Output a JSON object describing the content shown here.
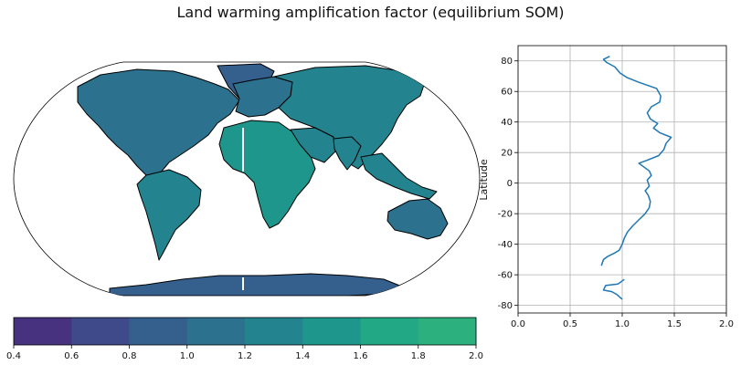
{
  "figure": {
    "title": "Land warming amplification factor (equilibrium SOM)"
  },
  "chart_data": [
    {
      "type": "heatmap",
      "projection": "robinson",
      "field": "land warming amplification factor (land only, ocean blank)",
      "colorbar": {
        "orientation": "horizontal",
        "ticks": [
          "0.4",
          "0.6",
          "0.8",
          "1.0",
          "1.2",
          "1.4",
          "1.6",
          "1.8",
          "2.0"
        ],
        "levels": [
          0.4,
          0.6,
          0.8,
          1.0,
          1.2,
          1.4,
          1.6,
          1.8,
          2.0
        ],
        "colors": [
          "#46327e",
          "#3e4a89",
          "#35608d",
          "#2c718e",
          "#23838e",
          "#1f968b",
          "#22a884",
          "#2cb17e"
        ]
      },
      "regions": [
        {
          "name": "North America",
          "value": 1.15
        },
        {
          "name": "Greenland",
          "value": 0.9
        },
        {
          "name": "South America",
          "value": 1.35
        },
        {
          "name": "Europe",
          "value": 1.05
        },
        {
          "name": "Africa",
          "value": 1.4
        },
        {
          "name": "Asia",
          "value": 1.3
        },
        {
          "name": "Arabia",
          "value": 1.35
        },
        {
          "name": "India",
          "value": 1.3
        },
        {
          "name": "Australia",
          "value": 1.15
        },
        {
          "name": "Antarctica",
          "value": 0.85
        }
      ]
    },
    {
      "type": "line",
      "xlim": [
        0.0,
        2.0
      ],
      "ylim": [
        -85,
        90
      ],
      "xticks": [
        "0.0",
        "0.5",
        "1.0",
        "1.5",
        "2.0"
      ],
      "yticks": [
        "-80",
        "-60",
        "-40",
        "-20",
        "0",
        "20",
        "40",
        "60",
        "80"
      ],
      "xtick_values": [
        0,
        0.5,
        1.0,
        1.5,
        2.0
      ],
      "ytick_values": [
        -80,
        -60,
        -40,
        -20,
        0,
        20,
        40,
        60,
        80
      ],
      "xlabel": "",
      "ylabel": "Latitude",
      "grid": true,
      "series": [
        {
          "color": "#1f77b4",
          "segments": [
            [
              [
                0.8,
                -54
              ],
              [
                0.82,
                -50
              ],
              [
                0.86,
                -48
              ],
              [
                0.92,
                -46
              ],
              [
                0.97,
                -44
              ],
              [
                1.0,
                -40
              ],
              [
                1.02,
                -36
              ],
              [
                1.05,
                -32
              ],
              [
                1.1,
                -28
              ],
              [
                1.16,
                -24
              ],
              [
                1.22,
                -20
              ],
              [
                1.26,
                -16
              ],
              [
                1.27,
                -12
              ],
              [
                1.25,
                -8
              ],
              [
                1.22,
                -5
              ],
              [
                1.26,
                -2
              ],
              [
                1.24,
                2
              ],
              [
                1.28,
                5
              ],
              [
                1.26,
                8
              ],
              [
                1.2,
                11
              ],
              [
                1.16,
                13
              ],
              [
                1.24,
                15
              ],
              [
                1.35,
                18
              ],
              [
                1.4,
                22
              ],
              [
                1.42,
                26
              ],
              [
                1.47,
                30
              ],
              [
                1.36,
                33
              ],
              [
                1.3,
                36
              ],
              [
                1.34,
                39
              ],
              [
                1.27,
                42
              ],
              [
                1.24,
                46
              ],
              [
                1.28,
                50
              ],
              [
                1.36,
                53
              ],
              [
                1.37,
                57
              ],
              [
                1.33,
                62
              ],
              [
                1.16,
                66
              ],
              [
                1.05,
                69
              ],
              [
                0.98,
                72
              ],
              [
                0.93,
                76
              ],
              [
                0.85,
                79
              ],
              [
                0.82,
                81
              ],
              [
                0.88,
                83
              ]
            ],
            [
              [
                1.02,
                -63
              ],
              [
                0.96,
                -66
              ],
              [
                0.84,
                -67
              ],
              [
                0.82,
                -70
              ],
              [
                0.9,
                -71
              ],
              [
                0.95,
                -73
              ],
              [
                1.0,
                -76
              ]
            ]
          ]
        }
      ]
    }
  ]
}
